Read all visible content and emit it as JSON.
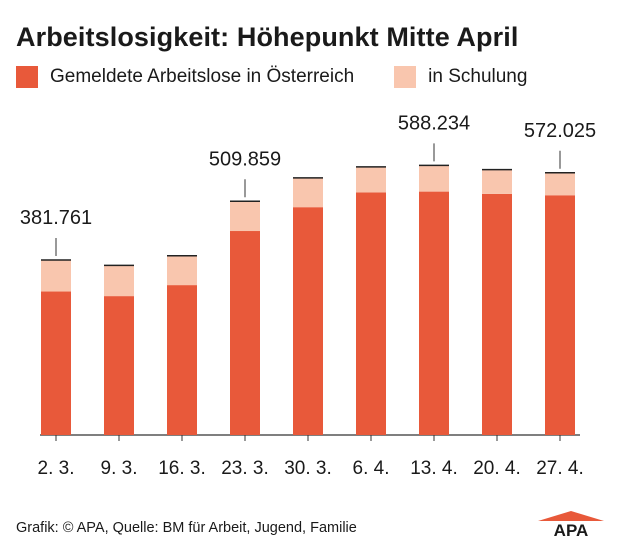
{
  "title": "Arbeitslosigkeit: Höhepunkt Mitte April",
  "legend": [
    {
      "label": "Gemeldete Arbeitslose in Österreich",
      "color": "#e8593a"
    },
    {
      "label": "in Schulung",
      "color": "#f9c6ae"
    }
  ],
  "footer": "Grafik: © APA, Quelle: BM für Arbeit, Jugend, Familie",
  "logo": "APA",
  "chart_data": {
    "type": "bar",
    "stacked": true,
    "categories": [
      "2. 3.",
      "9. 3.",
      "16. 3.",
      "23. 3.",
      "30. 3.",
      "6. 4.",
      "13. 4.",
      "20. 4.",
      "27. 4."
    ],
    "series": [
      {
        "name": "Gemeldete Arbeitslose in Österreich",
        "values": [
          313000,
          303000,
          327000,
          445000,
          497000,
          529000,
          531000,
          526000,
          523000
        ],
        "color": "#e8593a"
      },
      {
        "name": "in Schulung",
        "values": [
          68761,
          67000,
          64000,
          64859,
          64000,
          56000,
          57234,
          53000,
          49025
        ],
        "color": "#f9c6ae"
      }
    ],
    "totals_labeled": [
      {
        "category": "2. 3.",
        "label": "381.761"
      },
      {
        "category": "23. 3.",
        "label": "509.859"
      },
      {
        "category": "13. 4.",
        "label": "588.234"
      },
      {
        "category": "27. 4.",
        "label": "572.025"
      }
    ],
    "ylim": [
      0,
      600000
    ],
    "grid": false
  }
}
